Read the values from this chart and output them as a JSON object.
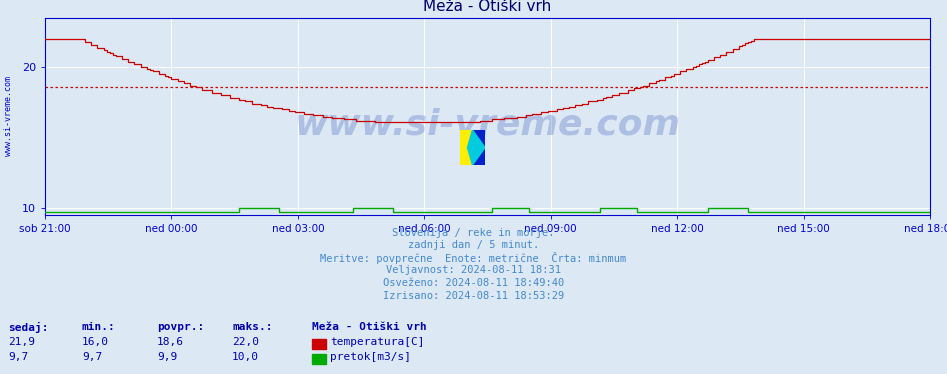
{
  "title": "Meža - Otiški vrh",
  "bg_color": "#dce9f5",
  "plot_bg_color": "#dce9f5",
  "grid_color": "#ffffff",
  "x_labels": [
    "sob 21:00",
    "ned 00:00",
    "ned 03:00",
    "ned 06:00",
    "ned 09:00",
    "ned 12:00",
    "ned 15:00",
    "ned 18:00"
  ],
  "x_ticks_norm": [
    0.0,
    0.143,
    0.286,
    0.429,
    0.571,
    0.714,
    0.857,
    1.0
  ],
  "total_points": 288,
  "ylim": [
    9.5,
    23.5
  ],
  "yticks": [
    10,
    20
  ],
  "avg_line_color": "#cc0000",
  "avg_line_y": 18.6,
  "temp_line_color": "#cc0000",
  "flow_line_color": "#00aa00",
  "axis_color": "#0000cc",
  "text_color": "#4488cc",
  "label_color": "#0000aa",
  "title_color": "#000066",
  "watermark": "www.si-vreme.com",
  "info_line1": "Slovenija / reke in morje.",
  "info_line2": "zadnji dan / 5 minut.",
  "info_line3": "Meritve: povprečne  Enote: metrične  Črta: minmum",
  "info_line4": "Veljavnost: 2024-08-11 18:31",
  "info_line5": "Osveženo: 2024-08-11 18:49:40",
  "info_line6": "Izrisano: 2024-08-11 18:53:29",
  "legend_title": "Meža - Otiški vrh",
  "legend_temp": "temperatura[C]",
  "legend_flow": "pretok[m3/s]",
  "stats_headers": [
    "sedaj:",
    "min.:",
    "povpr.:",
    "maks.:"
  ],
  "stats_temp": [
    "21,9",
    "16,0",
    "18,6",
    "22,0"
  ],
  "stats_flow": [
    "9,7",
    "9,7",
    "9,9",
    "10,0"
  ]
}
